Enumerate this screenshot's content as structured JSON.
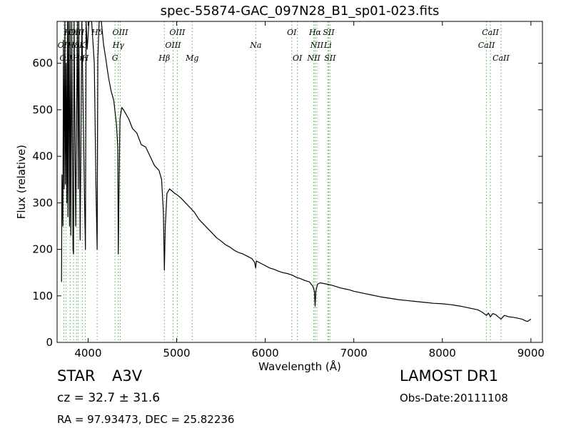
{
  "chart_data": {
    "type": "line",
    "title": "spec-55874-GAC_097N28_B1_sp01-023.fits",
    "xlabel": "Wavelength (Å)",
    "ylabel": "Flux (relative)",
    "xlim": [
      3650,
      9130
    ],
    "ylim": [
      0,
      690
    ],
    "xticks": [
      4000,
      5000,
      6000,
      7000,
      8000,
      9000
    ],
    "yticks": [
      0,
      100,
      200,
      300,
      400,
      500,
      600
    ],
    "grid": false,
    "line_color": "#000000",
    "marker_color": "#4daf4a",
    "series": [
      {
        "x": [
          3700,
          3705,
          3715,
          3722,
          3730,
          3738,
          3745,
          3752,
          3760,
          3768,
          3772,
          3780,
          3790,
          3797,
          3805,
          3815,
          3830,
          3835,
          3842,
          3860,
          3880,
          3889,
          3895,
          3910,
          3930,
          3960,
          3970,
          3978,
          3990,
          4010,
          4040,
          4070,
          4090,
          4102,
          4110,
          4125,
          4150,
          4175,
          4200,
          4230,
          4260,
          4290,
          4320,
          4335,
          4341,
          4348,
          4360,
          4380,
          4400,
          4430,
          4460,
          4500,
          4550,
          4600,
          4650,
          4700,
          4750,
          4800,
          4830,
          4850,
          4861,
          4872,
          4890,
          4920,
          4950,
          4980,
          5000,
          5050,
          5100,
          5150,
          5200,
          5250,
          5300,
          5350,
          5400,
          5450,
          5500,
          5550,
          5600,
          5650,
          5700,
          5750,
          5800,
          5850,
          5880,
          5892,
          5900,
          5950,
          6000,
          6050,
          6100,
          6150,
          6200,
          6250,
          6300,
          6350,
          6400,
          6450,
          6500,
          6540,
          6555,
          6563,
          6571,
          6590,
          6620,
          6650,
          6700,
          6750,
          6800,
          6850,
          6900,
          6950,
          7000,
          7050,
          7100,
          7200,
          7300,
          7400,
          7500,
          7600,
          7700,
          7800,
          7900,
          8000,
          8100,
          8200,
          8300,
          8400,
          8450,
          8498,
          8520,
          8542,
          8570,
          8600,
          8662,
          8700,
          8750,
          8800,
          8850,
          8900,
          8930,
          8960,
          9000
        ],
        "values": [
          130,
          360,
          250,
          650,
          330,
          690,
          340,
          600,
          300,
          690,
          270,
          690,
          250,
          690,
          230,
          690,
          200,
          190,
          690,
          250,
          690,
          330,
          690,
          220,
          690,
          300,
          200,
          690,
          630,
          690,
          690,
          600,
          320,
          200,
          610,
          690,
          690,
          640,
          610,
          570,
          540,
          520,
          470,
          420,
          190,
          310,
          480,
          505,
          500,
          490,
          480,
          460,
          450,
          425,
          420,
          400,
          380,
          370,
          350,
          280,
          155,
          250,
          320,
          330,
          325,
          320,
          318,
          310,
          300,
          290,
          280,
          265,
          255,
          245,
          235,
          225,
          218,
          210,
          205,
          198,
          193,
          190,
          185,
          180,
          172,
          160,
          175,
          170,
          165,
          160,
          157,
          153,
          150,
          148,
          145,
          140,
          137,
          133,
          130,
          120,
          110,
          78,
          110,
          125,
          128,
          127,
          125,
          123,
          120,
          117,
          115,
          113,
          110,
          108,
          106,
          102,
          98,
          95,
          92,
          90,
          88,
          86,
          84,
          83,
          81,
          78,
          74,
          70,
          65,
          58,
          63,
          55,
          62,
          60,
          50,
          58,
          55,
          54,
          52,
          50,
          47,
          45,
          50
        ]
      }
    ],
    "lines": [
      {
        "x": 3726,
        "label": "OII",
        "row": 2
      },
      {
        "x": 3750,
        "label": "OII",
        "row": 3
      },
      {
        "x": 3797,
        "label": "H9",
        "row": 1
      },
      {
        "x": 3835,
        "label": "H8",
        "row": 2
      },
      {
        "x": 3869,
        "label": "OIII",
        "row": 1
      },
      {
        "x": 3889,
        "label": "Hη",
        "row": 3
      },
      {
        "x": 3934,
        "label": "K",
        "row": 2
      },
      {
        "x": 3969,
        "label": "H",
        "row": 3
      },
      {
        "x": 4102,
        "label": "Hδ",
        "row": 1
      },
      {
        "x": 4304,
        "label": "G",
        "row": 3
      },
      {
        "x": 4341,
        "label": "Hγ",
        "row": 2
      },
      {
        "x": 4363,
        "label": "OIII",
        "row": 1
      },
      {
        "x": 4861,
        "label": "Hβ",
        "row": 3
      },
      {
        "x": 4959,
        "label": "OIII",
        "row": 2
      },
      {
        "x": 5007,
        "label": "OIII",
        "row": 1
      },
      {
        "x": 5175,
        "label": "Mg",
        "row": 3
      },
      {
        "x": 5893,
        "label": "Na",
        "row": 2
      },
      {
        "x": 6300,
        "label": "OI",
        "row": 1
      },
      {
        "x": 6363,
        "label": "OI",
        "row": 3
      },
      {
        "x": 6548,
        "label": "NII",
        "row": 3
      },
      {
        "x": 6563,
        "label": "Hα",
        "row": 1
      },
      {
        "x": 6583,
        "label": "NII",
        "row": 2
      },
      {
        "x": 6707,
        "label": "Li",
        "row": 2
      },
      {
        "x": 6716,
        "label": "SII",
        "row": 1
      },
      {
        "x": 6731,
        "label": "SII",
        "row": 3
      },
      {
        "x": 8498,
        "label": "CaII",
        "row": 2
      },
      {
        "x": 8542,
        "label": "CaII",
        "row": 1
      },
      {
        "x": 8662,
        "label": "CaII",
        "row": 3
      }
    ]
  },
  "footer": {
    "class_label": "STAR",
    "subclass_label": "A3V",
    "cz": "cz = 32.7 ± 31.6",
    "survey": "LAMOST DR1",
    "obs_date": "Obs-Date:20111108",
    "coords": "RA = 97.93473, DEC = 25.82236"
  }
}
